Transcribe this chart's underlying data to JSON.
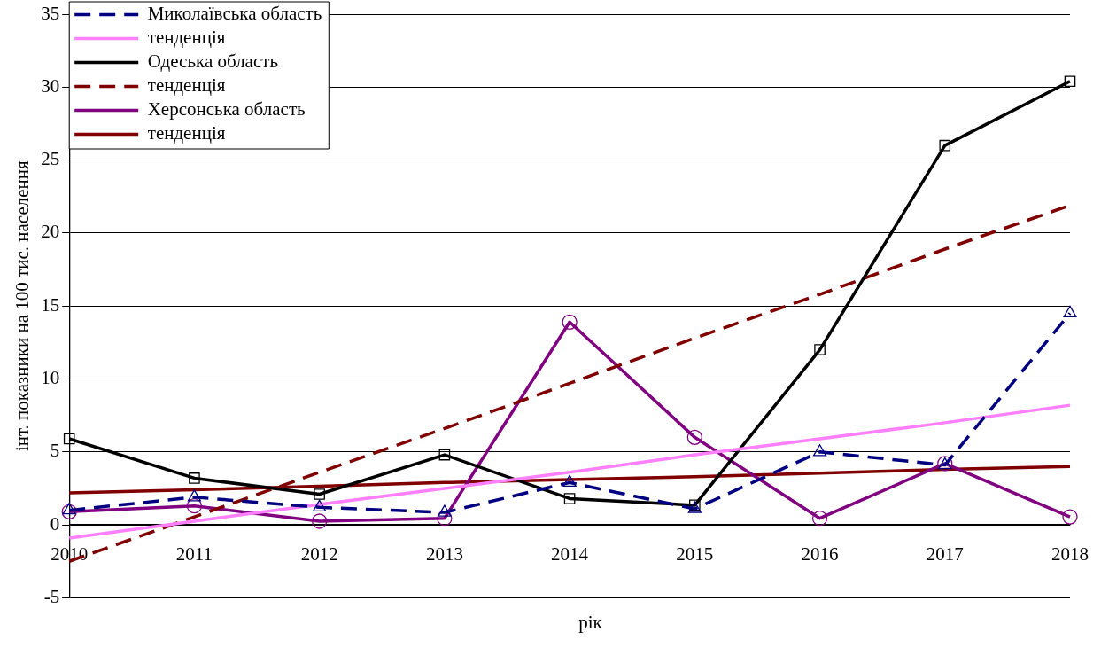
{
  "chart_data": {
    "type": "line",
    "xlabel": "рік",
    "ylabel": "інт. показники на 100 тис. населення",
    "categories": [
      "2010",
      "2011",
      "2012",
      "2013",
      "2014",
      "2015",
      "2016",
      "2017",
      "2018"
    ],
    "ylim": [
      -5,
      35
    ],
    "yticks": [
      -5,
      0,
      5,
      10,
      15,
      20,
      25,
      30,
      35
    ],
    "grid": "y",
    "legend": "top left",
    "series": [
      {
        "name": "Миколаївська область",
        "color": "#000080",
        "line_style": "dashed",
        "marker": "triangle",
        "values": [
          1.0,
          1.9,
          1.2,
          0.85,
          2.9,
          1.1,
          5.0,
          4.1,
          14.5
        ]
      },
      {
        "name": "тенденція",
        "color": "#ff80ff",
        "line_style": "solid",
        "marker": "none",
        "values": [
          -0.9,
          0.25,
          1.4,
          2.5,
          3.6,
          4.8,
          5.9,
          7.0,
          8.2
        ]
      },
      {
        "name": "Одеська область",
        "color": "#000000",
        "line_style": "solid",
        "marker": "square",
        "values": [
          5.9,
          3.2,
          2.1,
          4.8,
          1.8,
          1.35,
          12.0,
          26.0,
          30.4
        ]
      },
      {
        "name": "тенденція",
        "color": "#800000",
        "line_style": "dashed",
        "marker": "none",
        "values": [
          -2.5,
          0.55,
          3.6,
          6.6,
          9.7,
          12.8,
          15.8,
          18.9,
          21.9
        ]
      },
      {
        "name": "Херсонська область",
        "color": "#800080",
        "line_style": "solid",
        "marker": "circle",
        "values": [
          0.9,
          1.3,
          0.25,
          0.45,
          13.9,
          6.0,
          0.45,
          4.2,
          0.55
        ]
      },
      {
        "name": "тенденція",
        "color": "#800000",
        "line_style": "solid",
        "marker": "none",
        "values": [
          2.2,
          2.4,
          2.65,
          2.9,
          3.1,
          3.3,
          3.55,
          3.8,
          4.0
        ]
      }
    ]
  }
}
